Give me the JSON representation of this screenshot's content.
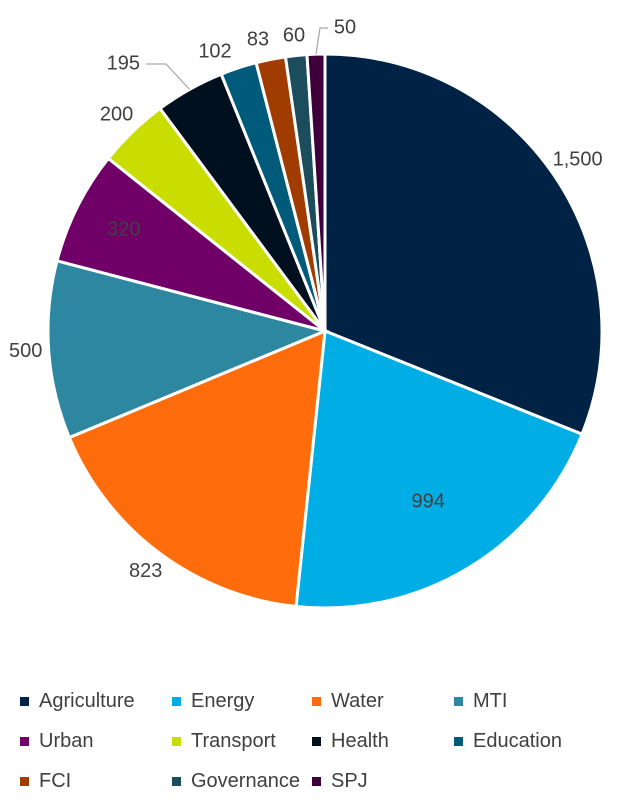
{
  "chart_data": {
    "type": "pie",
    "title": "",
    "categories": [
      "Agriculture",
      "Energy",
      "Water",
      "MTI",
      "Urban",
      "Transport",
      "Health",
      "Education",
      "FCI",
      "Governance",
      "SPJ"
    ],
    "values": [
      1500,
      994,
      823,
      500,
      320,
      200,
      195,
      102,
      83,
      60,
      50
    ],
    "data_labels": [
      "1,500",
      "994",
      "823",
      "500",
      "320",
      "200",
      "195",
      "102",
      "83",
      "60",
      "50"
    ],
    "colors": [
      "#002244",
      "#00ADE4",
      "#FF6C0C",
      "#2E87A0",
      "#700068",
      "#C9DE00",
      "#00101F",
      "#005A7A",
      "#A13C00",
      "#1B4D5C",
      "#3D003A"
    ],
    "legend_position": "bottom",
    "start_angle_deg": 0,
    "direction": "clockwise"
  }
}
